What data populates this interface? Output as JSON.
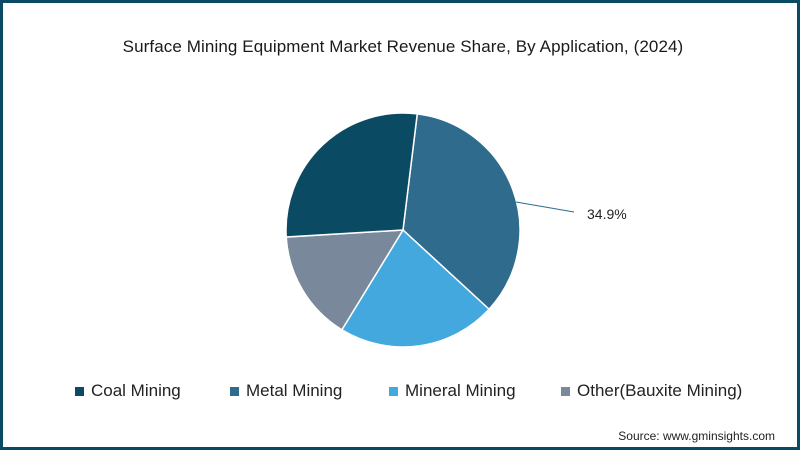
{
  "title": "Surface Mining Equipment Market Revenue Share, By Application, (2024)",
  "source": "Source: www.gminsights.com",
  "colors": {
    "border": "#0b4a63",
    "coal": "#0b4a63",
    "metal": "#2f6b8d",
    "mineral": "#42a8de",
    "other": "#79889b"
  },
  "legend": [
    {
      "label": "Coal Mining",
      "color": "#0b4a63"
    },
    {
      "label": "Metal Mining",
      "color": "#2f6b8d"
    },
    {
      "label": "Mineral Mining",
      "color": "#42a8de"
    },
    {
      "label": "Other(Bauxite Mining)",
      "color": "#79889b"
    }
  ],
  "annotation": "34.9%",
  "chart_data": {
    "type": "pie",
    "title": "Surface Mining Equipment Market Revenue Share, By Application, (2024)",
    "categories": [
      "Coal Mining",
      "Metal Mining",
      "Mineral Mining",
      "Other(Bauxite Mining)"
    ],
    "values": [
      27.9,
      34.9,
      21.9,
      15.3
    ],
    "colors": [
      "#0b4a63",
      "#2f6b8d",
      "#42a8de",
      "#79889b"
    ],
    "start_angle_deg_clockwise_from_top": 7,
    "order_clockwise": [
      "Metal Mining",
      "Mineral Mining",
      "Other(Bauxite Mining)",
      "Coal Mining"
    ],
    "labeled_values": {
      "Metal Mining": "34.9%"
    },
    "legend_position": "bottom",
    "xlabel": "",
    "ylabel": ""
  }
}
